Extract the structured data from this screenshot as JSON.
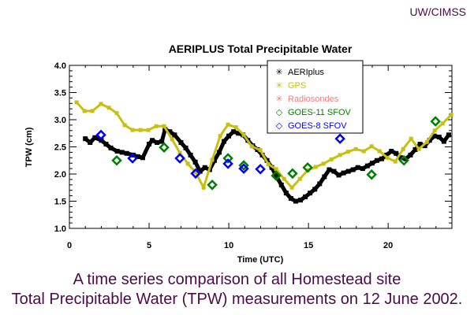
{
  "credit": "UW/CIMSS",
  "caption": {
    "line1": "A time series comparison of all Homestead site",
    "line2": "Total Precipitable Water (TPW) measurements on 12 June 2002."
  },
  "chart_data": {
    "type": "line",
    "title": "AERIPLUS Total Precipitable Water",
    "xlabel": "Time (UTC)",
    "ylabel": "TPW (cm)",
    "xlim": [
      0,
      24
    ],
    "ylim": [
      1.0,
      4.0
    ],
    "xticks": [
      "0",
      "5",
      "10",
      "15",
      "20"
    ],
    "xtick_values": [
      0,
      5,
      10,
      15,
      20
    ],
    "yticks": [
      "1.0",
      "1.5",
      "2.0",
      "2.5",
      "3.0",
      "3.5",
      "4.0"
    ],
    "ytick_values": [
      1.0,
      1.5,
      2.0,
      2.5,
      3.0,
      3.5,
      4.0
    ],
    "grid": false,
    "legend_position": "top-right",
    "series": [
      {
        "name": "AERIplus",
        "color": "#000000",
        "marker": "asterisk",
        "x": [
          1.0,
          1.3,
          1.6,
          2.0,
          2.3,
          2.6,
          3.0,
          3.3,
          3.6,
          4.0,
          4.3,
          4.6,
          5.0,
          5.2,
          5.5,
          5.8,
          6.0,
          6.3,
          6.6,
          7.0,
          7.3,
          7.6,
          7.9,
          8.2,
          8.5,
          8.8,
          9.1,
          9.4,
          9.7,
          10.0,
          10.3,
          10.6,
          10.9,
          11.2,
          11.5,
          11.8,
          12.1,
          12.4,
          12.7,
          13.0,
          13.3,
          13.6,
          13.9,
          14.2,
          14.5,
          14.8,
          15.1,
          15.4,
          15.7,
          16.0,
          16.3,
          16.6,
          16.9,
          17.2,
          17.5,
          17.8,
          18.1,
          18.4,
          18.7,
          19.0,
          19.3,
          19.6,
          19.9,
          20.2,
          20.5,
          20.8,
          21.1,
          21.4,
          21.7,
          22.0,
          22.3,
          22.6,
          22.9,
          23.2,
          23.5,
          23.8
        ],
        "y": [
          2.65,
          2.58,
          2.67,
          2.62,
          2.55,
          2.48,
          2.42,
          2.4,
          2.38,
          2.35,
          2.32,
          2.3,
          2.55,
          2.62,
          2.58,
          2.6,
          2.82,
          2.78,
          2.72,
          2.58,
          2.48,
          2.35,
          2.22,
          2.05,
          2.12,
          2.08,
          2.25,
          2.4,
          2.6,
          2.7,
          2.78,
          2.75,
          2.72,
          2.62,
          2.52,
          2.45,
          2.35,
          2.25,
          2.12,
          1.95,
          1.8,
          1.65,
          1.55,
          1.5,
          1.52,
          1.58,
          1.65,
          1.72,
          1.82,
          1.95,
          2.08,
          2.05,
          1.98,
          2.02,
          2.05,
          2.08,
          2.12,
          2.1,
          2.15,
          2.2,
          2.25,
          2.28,
          2.35,
          2.42,
          2.38,
          2.3,
          2.28,
          2.35,
          2.45,
          2.55,
          2.52,
          2.62,
          2.7,
          2.68,
          2.6,
          2.72
        ]
      },
      {
        "name": "GPS",
        "color": "#c8c010",
        "marker": "asterisk",
        "x": [
          0.45,
          0.95,
          1.44,
          1.98,
          2.48,
          2.97,
          3.47,
          3.96,
          4.46,
          4.95,
          5.45,
          5.94,
          6.44,
          6.93,
          7.43,
          7.92,
          8.42,
          8.96,
          9.46,
          9.95,
          10.45,
          10.94,
          11.44,
          11.98,
          12.48,
          12.97,
          13.47,
          13.96,
          14.46,
          14.95,
          15.45,
          15.94,
          16.44,
          16.98,
          17.48,
          17.97,
          18.47,
          18.96,
          19.46,
          19.95,
          20.45,
          20.94,
          21.44,
          21.93,
          22.43,
          22.92,
          23.42,
          23.96
        ],
        "y": [
          3.32,
          3.16,
          3.16,
          3.29,
          3.22,
          3.12,
          2.9,
          2.81,
          2.81,
          2.81,
          2.88,
          2.88,
          2.64,
          2.39,
          2.19,
          2.03,
          1.75,
          2.26,
          2.7,
          2.91,
          2.86,
          2.72,
          2.51,
          2.44,
          2.18,
          2.09,
          1.91,
          1.75,
          1.91,
          2.07,
          2.13,
          2.19,
          2.27,
          2.35,
          2.41,
          2.46,
          2.42,
          2.51,
          2.42,
          2.3,
          2.23,
          2.46,
          2.65,
          2.46,
          2.59,
          2.8,
          2.93,
          3.09
        ]
      },
      {
        "name": "Radiosondes",
        "color": "#f08080",
        "marker": "asterisk",
        "x": [],
        "y": []
      },
      {
        "name": "GOES-11 SFOV",
        "color": "#008000",
        "marker": "diamond",
        "x": [
          2.97,
          5.94,
          8.96,
          9.95,
          10.94,
          12.97,
          14.0,
          14.95,
          18.96,
          20.99,
          22.97
        ],
        "y": [
          2.25,
          2.49,
          1.8,
          2.29,
          2.16,
          1.97,
          2.01,
          2.12,
          1.99,
          2.25,
          2.97
        ]
      },
      {
        "name": "GOES-8 SFOV",
        "color": "#0000ff",
        "marker": "diamond",
        "x": [
          1.98,
          3.96,
          6.93,
          7.92,
          9.95,
          10.94,
          11.98,
          16.98
        ],
        "y": [
          2.72,
          2.29,
          2.29,
          2.01,
          2.19,
          2.1,
          2.09,
          2.65
        ]
      }
    ]
  }
}
